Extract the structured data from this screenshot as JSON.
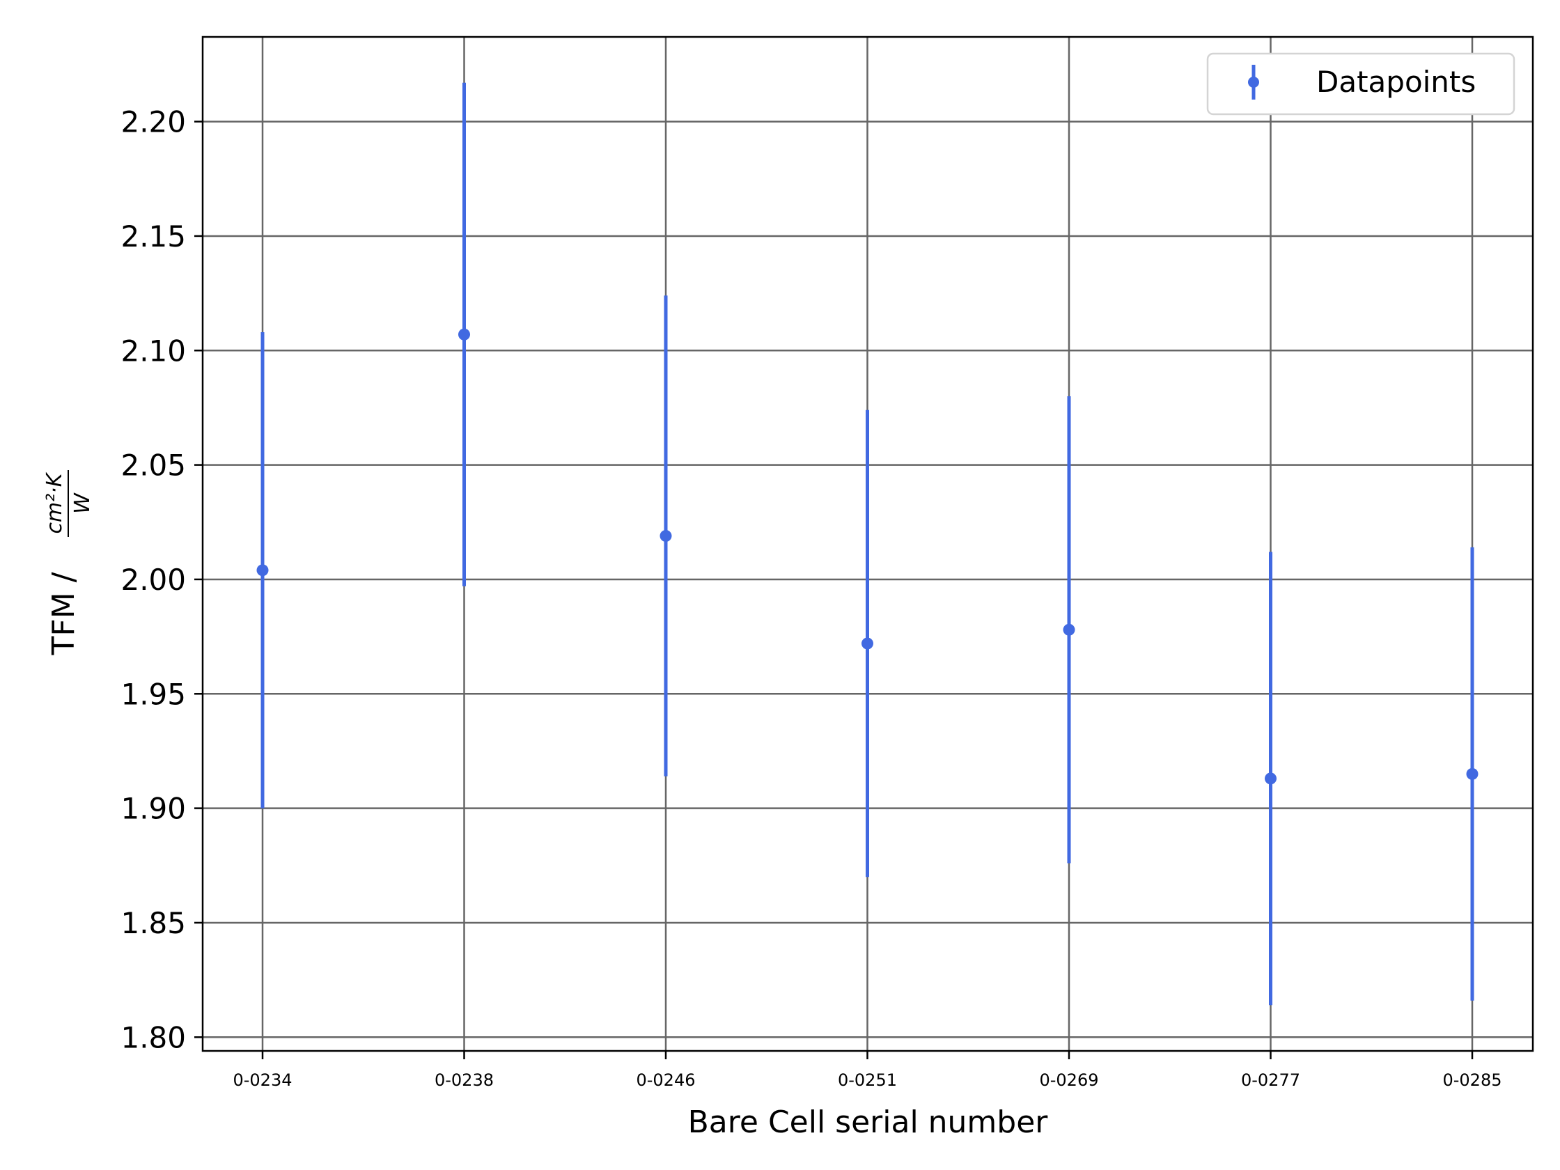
{
  "chart_data": {
    "type": "scatter",
    "xlabel": "Bare Cell serial number",
    "ylabel": {
      "prefix": "TFM / ",
      "numerator": "cm²·K",
      "denominator": "W"
    },
    "categories": [
      "0-0234",
      "0-0238",
      "0-0246",
      "0-0251",
      "0-0269",
      "0-0277",
      "0-0285"
    ],
    "series": [
      {
        "name": "Datapoints",
        "values": [
          2.004,
          2.107,
          2.019,
          1.972,
          1.978,
          1.913,
          1.915
        ],
        "errors": [
          0.104,
          0.11,
          0.105,
          0.102,
          0.102,
          0.099,
          0.099
        ],
        "color": "#4169e1"
      }
    ],
    "yticks": [
      "1.80",
      "1.85",
      "1.90",
      "1.95",
      "2.00",
      "2.05",
      "2.10",
      "2.15",
      "2.20"
    ],
    "ylim": [
      1.794,
      2.237
    ],
    "grid": true,
    "legend_position": "top-right"
  }
}
